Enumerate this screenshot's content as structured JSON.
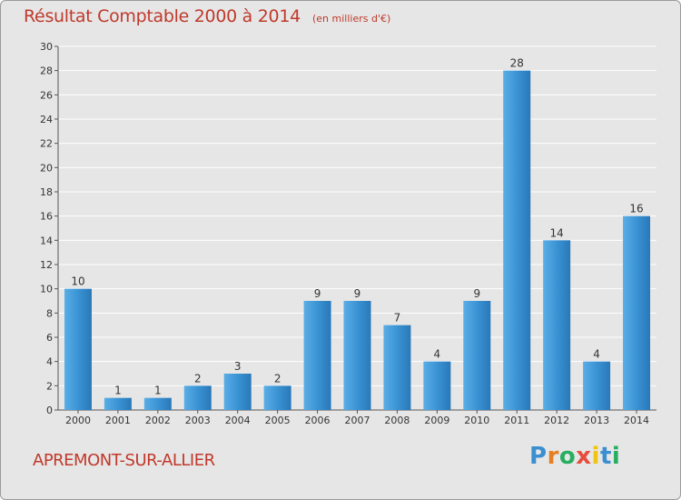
{
  "chart_data": {
    "type": "bar",
    "title": "Résultat Comptable 2000 à 2014",
    "subtitle": "(en milliers d'€)",
    "xlabel": "",
    "ylabel": "",
    "ylim": [
      0,
      30
    ],
    "yticks": [
      0,
      2,
      4,
      6,
      8,
      10,
      12,
      14,
      16,
      18,
      20,
      22,
      24,
      26,
      28,
      30
    ],
    "categories": [
      "2000",
      "2001",
      "2002",
      "2003",
      "2004",
      "2005",
      "2006",
      "2007",
      "2008",
      "2009",
      "2010",
      "2011",
      "2012",
      "2013",
      "2014"
    ],
    "values": [
      10,
      1,
      1,
      2,
      3,
      2,
      9,
      9,
      7,
      4,
      9,
      28,
      14,
      4,
      16
    ],
    "grid": true,
    "bar_color": "#3a8fd0"
  },
  "footer": {
    "commune": "APREMONT-SUR-ALLIER",
    "logo_letters": [
      "P",
      "r",
      "o",
      "x",
      "i",
      "t",
      "i"
    ],
    "logo_colors": [
      "#3a8fd0",
      "#e67e22",
      "#27ae60",
      "#e74c3c",
      "#f1c40f",
      "#3a8fd0",
      "#27ae60"
    ]
  },
  "colors": {
    "title": "#c0392b",
    "background": "#e6e6e6",
    "grid": "#ffffff",
    "axis": "#555555"
  }
}
